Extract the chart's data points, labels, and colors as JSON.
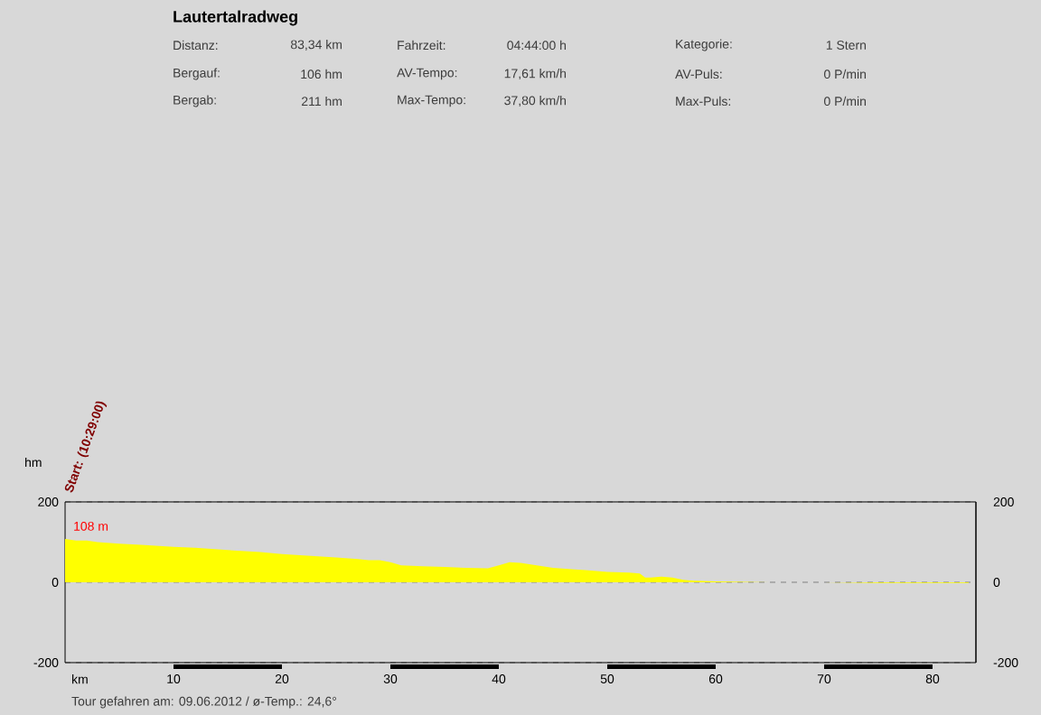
{
  "chart_data": {
    "type": "area",
    "title": "Lautertalradweg",
    "xlabel": "km",
    "ylabel": "hm",
    "x": [
      0,
      1,
      2,
      3,
      5,
      7,
      10,
      12,
      15,
      18,
      20,
      22,
      25,
      27,
      28,
      29,
      30,
      31,
      33,
      35,
      37,
      39,
      40,
      41,
      42,
      43,
      45,
      47,
      48,
      50,
      52,
      53,
      53.5,
      54,
      55,
      56,
      57,
      58,
      60,
      65,
      70,
      75,
      80,
      83.34
    ],
    "series": [
      {
        "color": "#ffff00",
        "values": [
          108,
          104,
          104,
          100,
          96,
          93,
          88,
          86,
          80,
          75,
          70,
          67,
          62,
          58,
          55,
          55,
          50,
          42,
          40,
          38,
          36,
          35,
          42,
          50,
          48,
          44,
          36,
          32,
          30,
          26,
          24,
          22,
          12,
          12,
          14,
          12,
          6,
          4,
          2,
          0,
          0,
          -2,
          -2,
          -2
        ]
      }
    ],
    "xlim": [
      0,
      84
    ],
    "xticks": [
      10,
      20,
      30,
      40,
      50,
      60,
      70,
      80
    ],
    "ylim": [
      -200,
      200
    ],
    "yticks": [
      -200,
      0,
      200
    ],
    "y2lim": [
      -200,
      200
    ],
    "y2ticks": [
      -200,
      0,
      200
    ],
    "grid": "y",
    "line_style": "dashed",
    "annotations": [
      "Distanz:",
      "83,34 km",
      "Fahrzeit:",
      "04:44:00 h",
      "Kategorie:",
      "1 Stern",
      "Bergauf:",
      "106 hm",
      "AV-Tempo:",
      "17,61 km/h",
      "AV-Puls:",
      "0 P/min",
      "Bergab:",
      "211 hm",
      "Max-Tempo:",
      "37,80 km/h",
      "Max-Puls:",
      "0 P/min",
      "Start: (10:29:00)",
      {
        "text": "108 m",
        "x": 0,
        "y": 108
      },
      "Tour gefahren am: 09.06.2012  /  ø-Temp.: 24,6°"
    ]
  }
}
